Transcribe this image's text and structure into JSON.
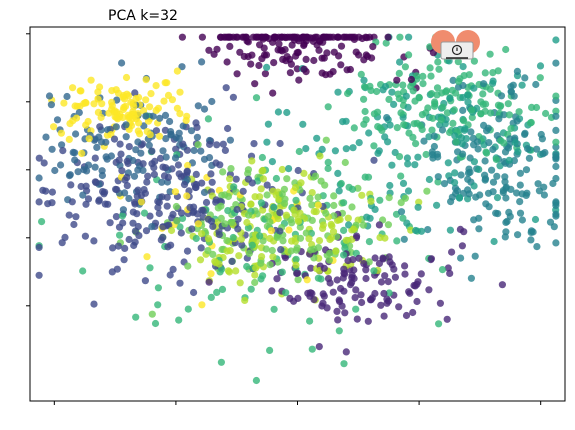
{
  "chart_data": {
    "type": "scatter",
    "title": "PCA k=32",
    "xlabel": "",
    "ylabel": "",
    "xlim": [
      -4.4,
      4.4
    ],
    "ylim": [
      -3.4,
      2.1
    ],
    "x_ticks": [
      -4,
      -2,
      0,
      2,
      4
    ],
    "y_ticks": [
      -2,
      -1,
      0,
      1,
      2
    ],
    "x_tick_labels_visible": false,
    "y_tick_labels_visible": false,
    "grid": false,
    "legend": "none",
    "colormap": "viridis",
    "marker_alpha": 0.8,
    "clusters": [
      {
        "color": "#440154",
        "center": [
          0.1,
          1.9
        ],
        "spread": [
          0.75,
          0.3
        ],
        "count": 170
      },
      {
        "color": "#482878",
        "center": [
          1.0,
          -1.6
        ],
        "spread": [
          0.8,
          0.35
        ],
        "count": 130
      },
      {
        "color": "#3e4a89",
        "center": [
          -2.2,
          -0.4
        ],
        "spread": [
          1.0,
          0.55
        ],
        "count": 240
      },
      {
        "color": "#31688e",
        "center": [
          -2.8,
          0.3
        ],
        "spread": [
          0.8,
          0.5
        ],
        "count": 120
      },
      {
        "color": "#26828e",
        "center": [
          3.4,
          0.1
        ],
        "spread": [
          0.7,
          0.6
        ],
        "count": 170
      },
      {
        "color": "#1f9e89",
        "center": [
          2.1,
          0.4
        ],
        "spread": [
          1.1,
          0.7
        ],
        "count": 140
      },
      {
        "color": "#35b779",
        "center": [
          2.5,
          1.0
        ],
        "spread": [
          0.8,
          0.4
        ],
        "count": 160
      },
      {
        "color": "#35b779",
        "center": [
          -0.3,
          -0.9
        ],
        "spread": [
          1.4,
          0.8
        ],
        "count": 120
      },
      {
        "color": "#6ece58",
        "center": [
          -0.3,
          -0.8
        ],
        "spread": [
          0.8,
          0.45
        ],
        "count": 160
      },
      {
        "color": "#b5de2b",
        "center": [
          -0.2,
          -0.9
        ],
        "spread": [
          0.8,
          0.4
        ],
        "count": 150
      },
      {
        "color": "#fde725",
        "center": [
          -2.9,
          0.9
        ],
        "spread": [
          0.5,
          0.25
        ],
        "count": 110
      },
      {
        "color": "#fde725",
        "center": [
          -1.1,
          -0.7
        ],
        "spread": [
          1.0,
          0.5
        ],
        "count": 25
      }
    ]
  },
  "icons": {
    "overlay_icon": "warning-sign-icon",
    "overlay_colors": {
      "ring": "#f08c6e",
      "panel": "#eeeeee",
      "mark": "#222222"
    }
  }
}
